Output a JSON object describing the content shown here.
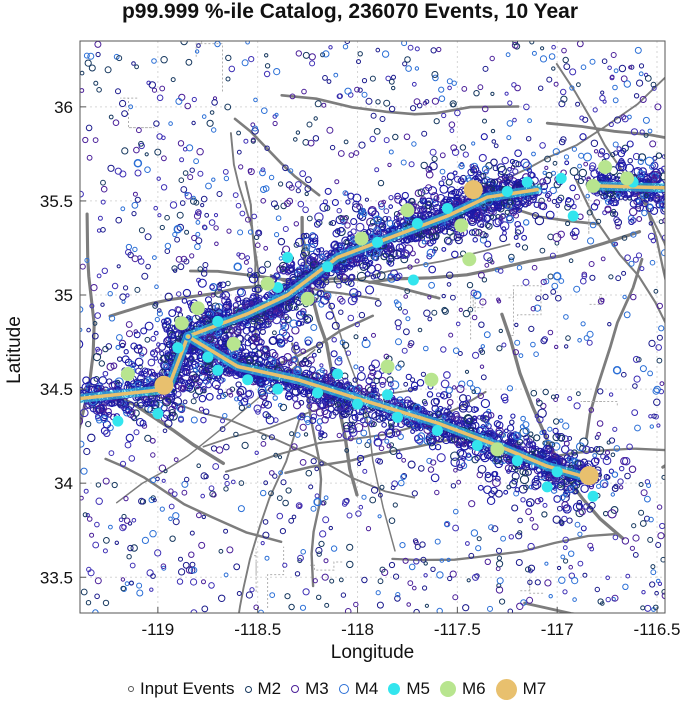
{
  "chart_data": {
    "type": "scatter",
    "title": "p99.999 %-ile Catalog, 236070 Events, 10 Year",
    "xlabel": "Longitude",
    "ylabel": "Latitude",
    "xlim": [
      -119.39,
      -116.46
    ],
    "ylim": [
      33.31,
      36.35
    ],
    "x_ticks": [
      -119,
      -118.5,
      -118,
      -117.5,
      -117,
      -116.5
    ],
    "x_tick_labels": [
      "-119",
      "-118.5",
      "-118",
      "-117.5",
      "-117",
      "-116.5"
    ],
    "y_ticks": [
      33.5,
      34,
      34.5,
      35,
      35.5,
      36
    ],
    "y_tick_labels": [
      "33.5",
      "34",
      "34.5",
      "35",
      "35.5",
      "36"
    ],
    "grid": true,
    "legend_position": "bottom",
    "rupture_traces": [
      {
        "x": [
          -119.39,
          -118.95,
          -118.85
        ],
        "y": [
          34.45,
          34.5,
          34.78
        ]
      },
      {
        "x": [
          -118.85,
          -118.55,
          -118.35,
          -118.1,
          -117.8,
          -117.55,
          -117.35,
          -117.1
        ],
        "y": [
          34.78,
          34.9,
          35.0,
          35.2,
          35.32,
          35.42,
          35.52,
          35.56
        ]
      },
      {
        "x": [
          -118.85,
          -118.6,
          -118.3,
          -118.0,
          -117.6,
          -117.3,
          -117.05,
          -116.85
        ],
        "y": [
          34.78,
          34.62,
          34.55,
          34.45,
          34.32,
          34.2,
          34.09,
          34.03
        ]
      },
      {
        "x": [
          -116.8,
          -116.46
        ],
        "y": [
          35.58,
          35.57
        ]
      }
    ],
    "series": [
      {
        "name": "M7",
        "color": "#e8c06e",
        "points": [
          [
            -117.42,
            35.56
          ],
          [
            -118.97,
            34.52
          ],
          [
            -116.84,
            34.04
          ]
        ]
      },
      {
        "name": "M6",
        "color": "#b8e58f",
        "points": [
          [
            -118.88,
            34.85
          ],
          [
            -118.8,
            34.93
          ],
          [
            -118.62,
            34.74
          ],
          [
            -118.25,
            34.98
          ],
          [
            -117.98,
            35.3
          ],
          [
            -117.48,
            35.37
          ],
          [
            -117.44,
            35.19
          ],
          [
            -117.63,
            34.55
          ],
          [
            -117.85,
            34.62
          ],
          [
            -119.15,
            34.58
          ],
          [
            -116.76,
            35.68
          ],
          [
            -116.82,
            35.58
          ],
          [
            -116.65,
            35.62
          ],
          [
            -117.75,
            35.45
          ],
          [
            -117.3,
            34.18
          ],
          [
            -118.45,
            35.06
          ]
        ]
      },
      {
        "name": "M5",
        "color": "#33e5ee",
        "points": [
          [
            -118.9,
            34.72
          ],
          [
            -118.7,
            34.6
          ],
          [
            -118.55,
            34.55
          ],
          [
            -118.4,
            34.5
          ],
          [
            -118.2,
            34.48
          ],
          [
            -118.0,
            34.42
          ],
          [
            -117.8,
            34.35
          ],
          [
            -117.6,
            34.28
          ],
          [
            -117.4,
            34.2
          ],
          [
            -117.2,
            34.12
          ],
          [
            -117.0,
            34.06
          ],
          [
            -118.7,
            34.86
          ],
          [
            -118.4,
            35.04
          ],
          [
            -118.15,
            35.15
          ],
          [
            -117.9,
            35.28
          ],
          [
            -117.7,
            35.38
          ],
          [
            -117.55,
            35.46
          ],
          [
            -117.25,
            35.55
          ],
          [
            -117.15,
            35.6
          ],
          [
            -116.98,
            35.62
          ],
          [
            -116.62,
            35.6
          ],
          [
            -116.92,
            35.42
          ],
          [
            -117.72,
            35.08
          ],
          [
            -119.0,
            34.37
          ],
          [
            -119.2,
            34.33
          ],
          [
            -117.05,
            33.98
          ],
          [
            -116.82,
            33.93
          ],
          [
            -118.1,
            34.58
          ],
          [
            -117.85,
            34.47
          ],
          [
            -118.35,
            35.2
          ],
          [
            -118.75,
            34.67
          ]
        ]
      },
      {
        "name": "M4",
        "color": "#2b6fd6",
        "points": [
          [
            -118.85,
            34.78
          ],
          [
            -118.3,
            34.6
          ],
          [
            -117.7,
            34.4
          ],
          [
            -117.2,
            34.25
          ],
          [
            -117.9,
            35.4
          ],
          [
            -118.6,
            35.15
          ],
          [
            -117.4,
            35.0
          ],
          [
            -118.9,
            35.35
          ],
          [
            -117.0,
            35.1
          ],
          [
            -118.2,
            33.9
          ],
          [
            -119.1,
            35.7
          ],
          [
            -116.7,
            34.6
          ]
        ]
      }
    ]
  },
  "legend": [
    {
      "label": "Input Events",
      "kind": "hollow",
      "color": "#555555",
      "size": 6
    },
    {
      "label": "M2",
      "kind": "hollow",
      "color": "#16385f",
      "size": 7
    },
    {
      "label": "M3",
      "kind": "hollow",
      "color": "#4a1f99",
      "size": 8
    },
    {
      "label": "M4",
      "kind": "hollow",
      "color": "#2b6fd6",
      "size": 10
    },
    {
      "label": "M5",
      "kind": "filled",
      "color": "#33e5ee",
      "size": 12
    },
    {
      "label": "M6",
      "kind": "filled",
      "color": "#b8e58f",
      "size": 16
    },
    {
      "label": "M7",
      "kind": "filled",
      "color": "#e8c06e",
      "size": 21
    }
  ],
  "colors": {
    "fault": "#7d7d7d",
    "border": "#b0b0b0",
    "cloud_dense": "#1d1aa8",
    "cloud_mid": "#2b4fd0",
    "trace": "#e8c06e"
  }
}
